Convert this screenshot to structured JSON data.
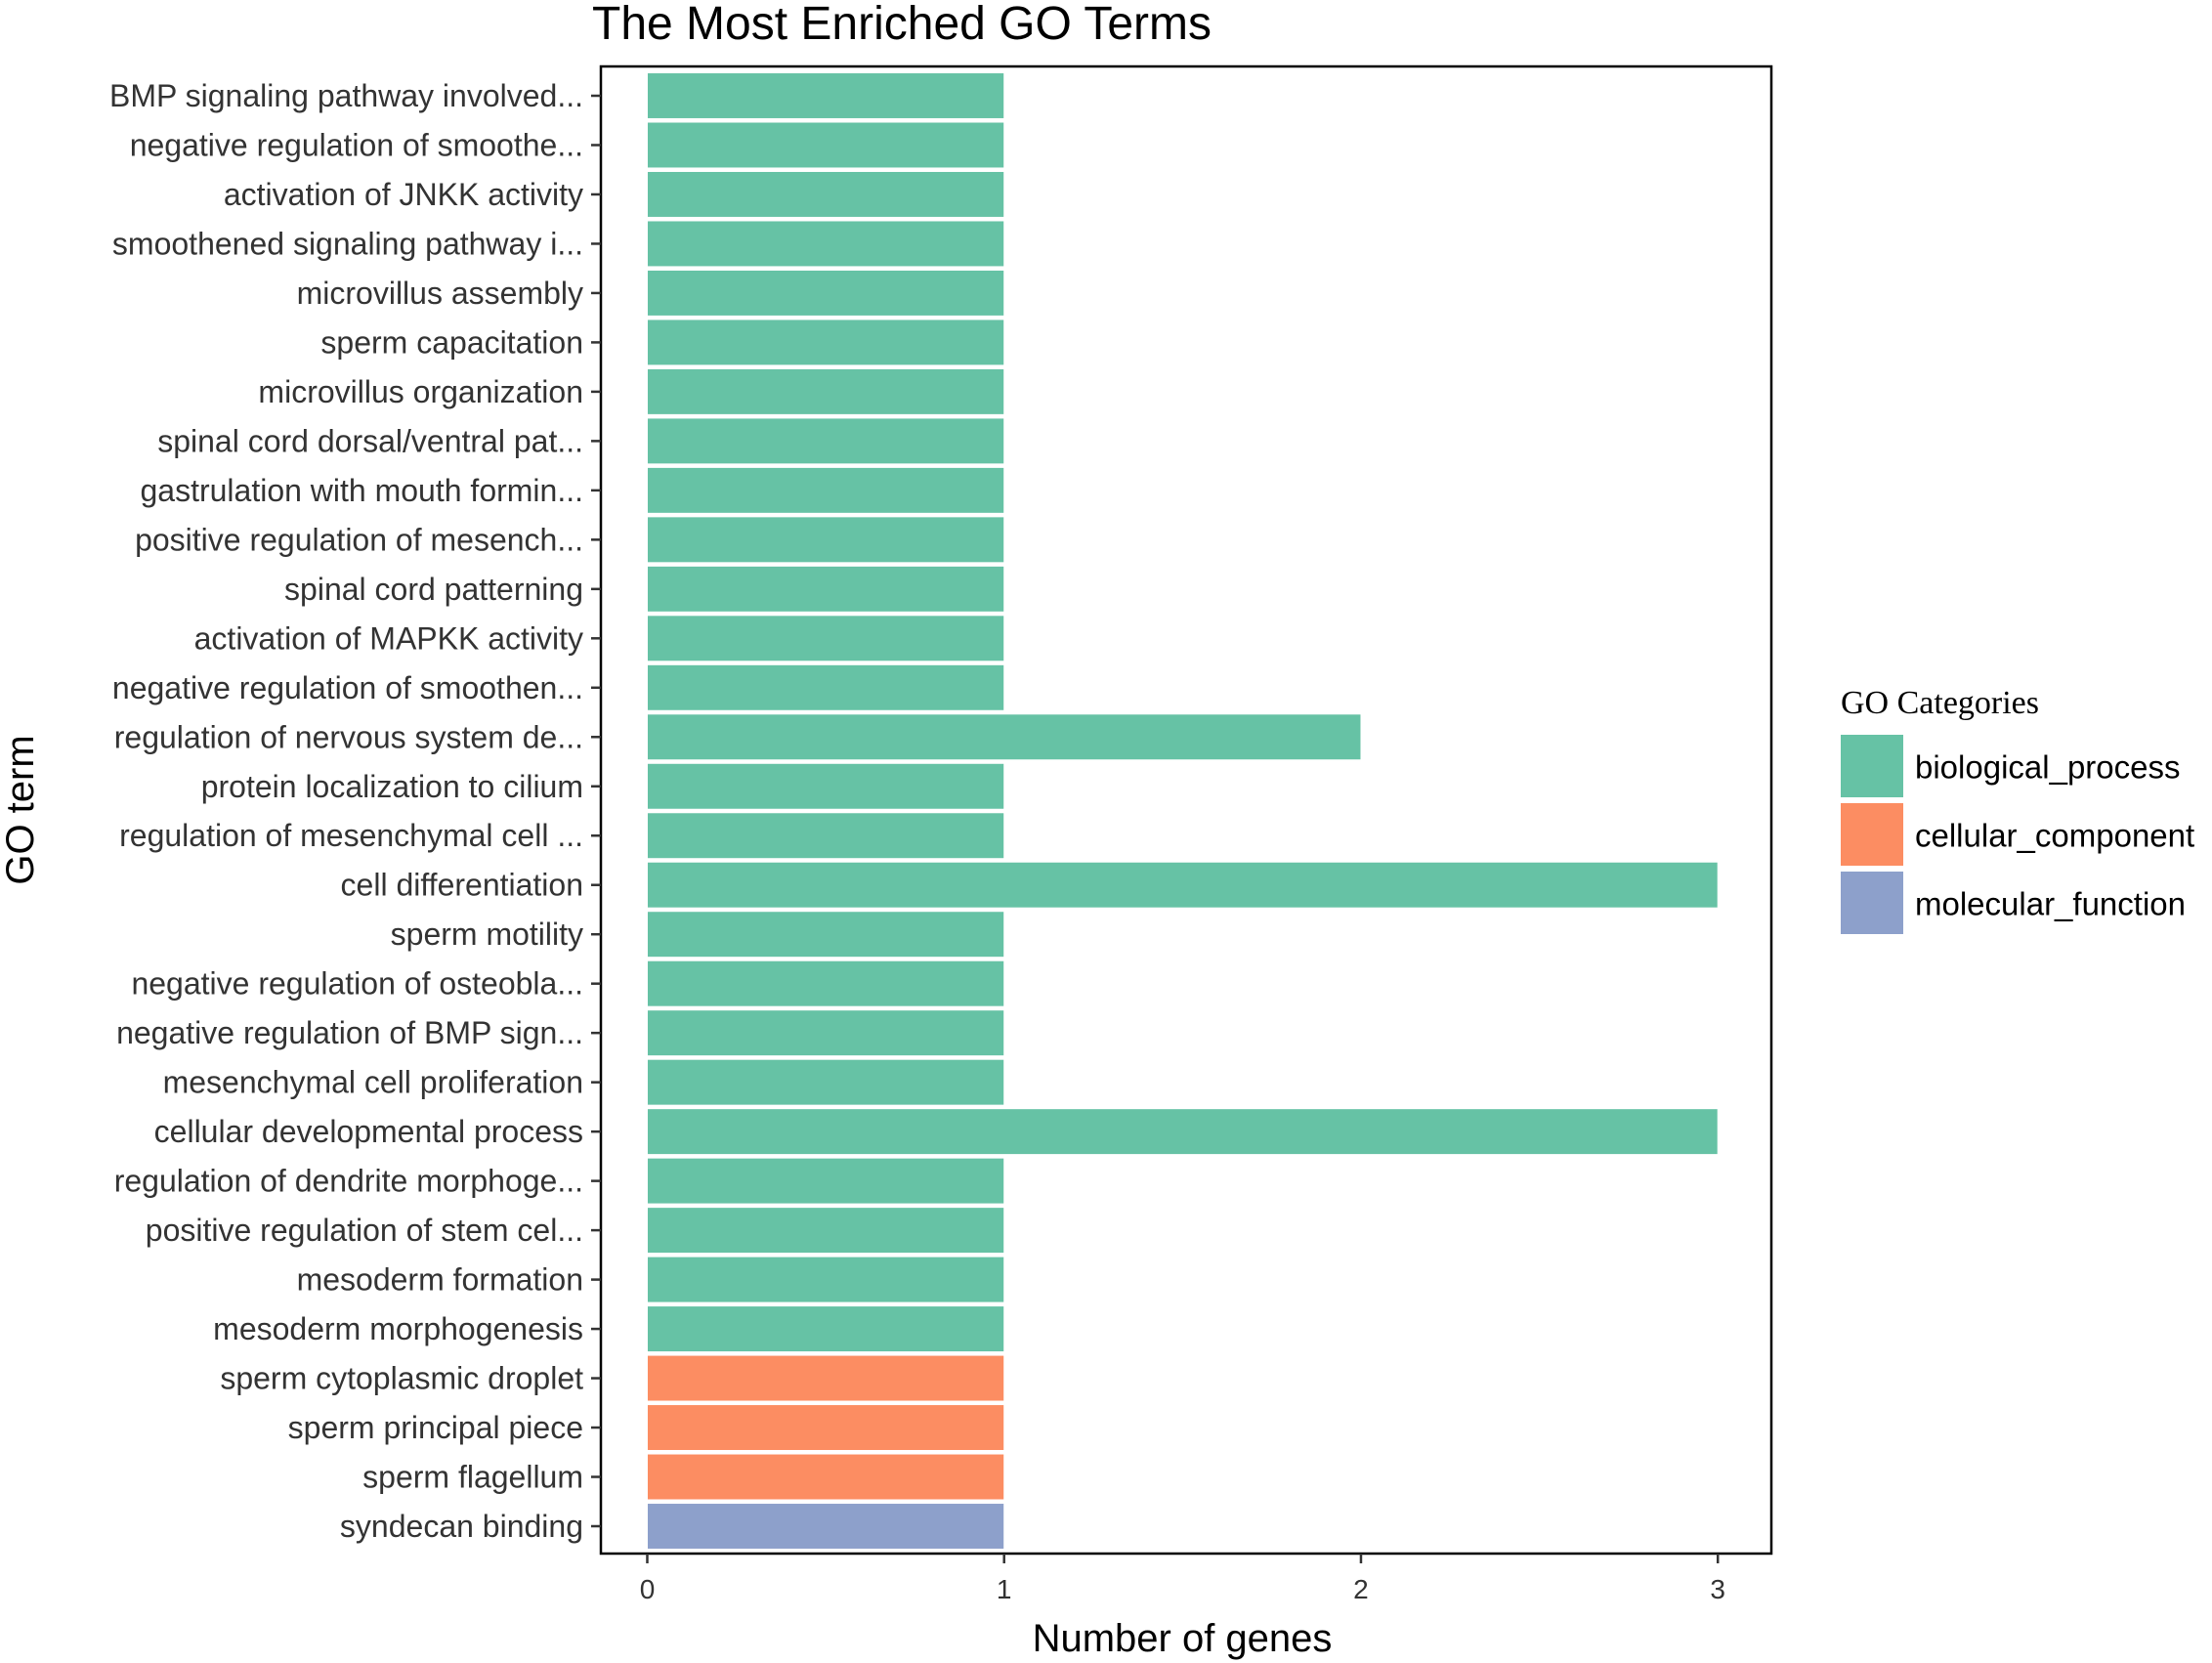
{
  "chart_data": {
    "type": "bar",
    "orientation": "horizontal",
    "title": "The Most Enriched GO Terms",
    "xlabel": "Number of genes",
    "ylabel": "GO term",
    "xlim": [
      -0.13,
      3.15
    ],
    "xticks": [
      0,
      1,
      2,
      3
    ],
    "grid": false,
    "legend": {
      "title": "GO Categories",
      "position": "right",
      "entries": [
        {
          "name": "biological_process",
          "color": "#66C2A5"
        },
        {
          "name": "cellular_component",
          "color": "#FC8D62"
        },
        {
          "name": "molecular_function",
          "color": "#8DA0CB"
        }
      ]
    },
    "bars": [
      {
        "term": "BMP signaling pathway involved...",
        "value": 1,
        "category": "biological_process"
      },
      {
        "term": "negative regulation of smoothe...",
        "value": 1,
        "category": "biological_process"
      },
      {
        "term": "activation of JNKK activity",
        "value": 1,
        "category": "biological_process"
      },
      {
        "term": "smoothened signaling pathway i...",
        "value": 1,
        "category": "biological_process"
      },
      {
        "term": "microvillus assembly",
        "value": 1,
        "category": "biological_process"
      },
      {
        "term": "sperm capacitation",
        "value": 1,
        "category": "biological_process"
      },
      {
        "term": "microvillus organization",
        "value": 1,
        "category": "biological_process"
      },
      {
        "term": "spinal cord dorsal/ventral pat...",
        "value": 1,
        "category": "biological_process"
      },
      {
        "term": "gastrulation with mouth formin...",
        "value": 1,
        "category": "biological_process"
      },
      {
        "term": "positive regulation of mesench...",
        "value": 1,
        "category": "biological_process"
      },
      {
        "term": "spinal cord patterning",
        "value": 1,
        "category": "biological_process"
      },
      {
        "term": "activation of MAPKK activity",
        "value": 1,
        "category": "biological_process"
      },
      {
        "term": "negative regulation of smoothen...",
        "value": 1,
        "category": "biological_process"
      },
      {
        "term": "regulation of nervous system de...",
        "value": 2,
        "category": "biological_process"
      },
      {
        "term": "protein localization to cilium",
        "value": 1,
        "category": "biological_process"
      },
      {
        "term": "regulation of mesenchymal cell ...",
        "value": 1,
        "category": "biological_process"
      },
      {
        "term": "cell differentiation",
        "value": 3,
        "category": "biological_process"
      },
      {
        "term": "sperm motility",
        "value": 1,
        "category": "biological_process"
      },
      {
        "term": "negative regulation of osteobla...",
        "value": 1,
        "category": "biological_process"
      },
      {
        "term": "negative regulation of BMP sign...",
        "value": 1,
        "category": "biological_process"
      },
      {
        "term": "mesenchymal cell proliferation",
        "value": 1,
        "category": "biological_process"
      },
      {
        "term": "cellular developmental process",
        "value": 3,
        "category": "biological_process"
      },
      {
        "term": "regulation of dendrite morphoge...",
        "value": 1,
        "category": "biological_process"
      },
      {
        "term": "positive regulation of stem cel...",
        "value": 1,
        "category": "biological_process"
      },
      {
        "term": "mesoderm formation",
        "value": 1,
        "category": "biological_process"
      },
      {
        "term": "mesoderm morphogenesis",
        "value": 1,
        "category": "biological_process"
      },
      {
        "term": "sperm cytoplasmic droplet",
        "value": 1,
        "category": "cellular_component"
      },
      {
        "term": "sperm principal piece",
        "value": 1,
        "category": "cellular_component"
      },
      {
        "term": "sperm flagellum",
        "value": 1,
        "category": "cellular_component"
      },
      {
        "term": "syndecan binding",
        "value": 1,
        "category": "molecular_function"
      }
    ]
  }
}
